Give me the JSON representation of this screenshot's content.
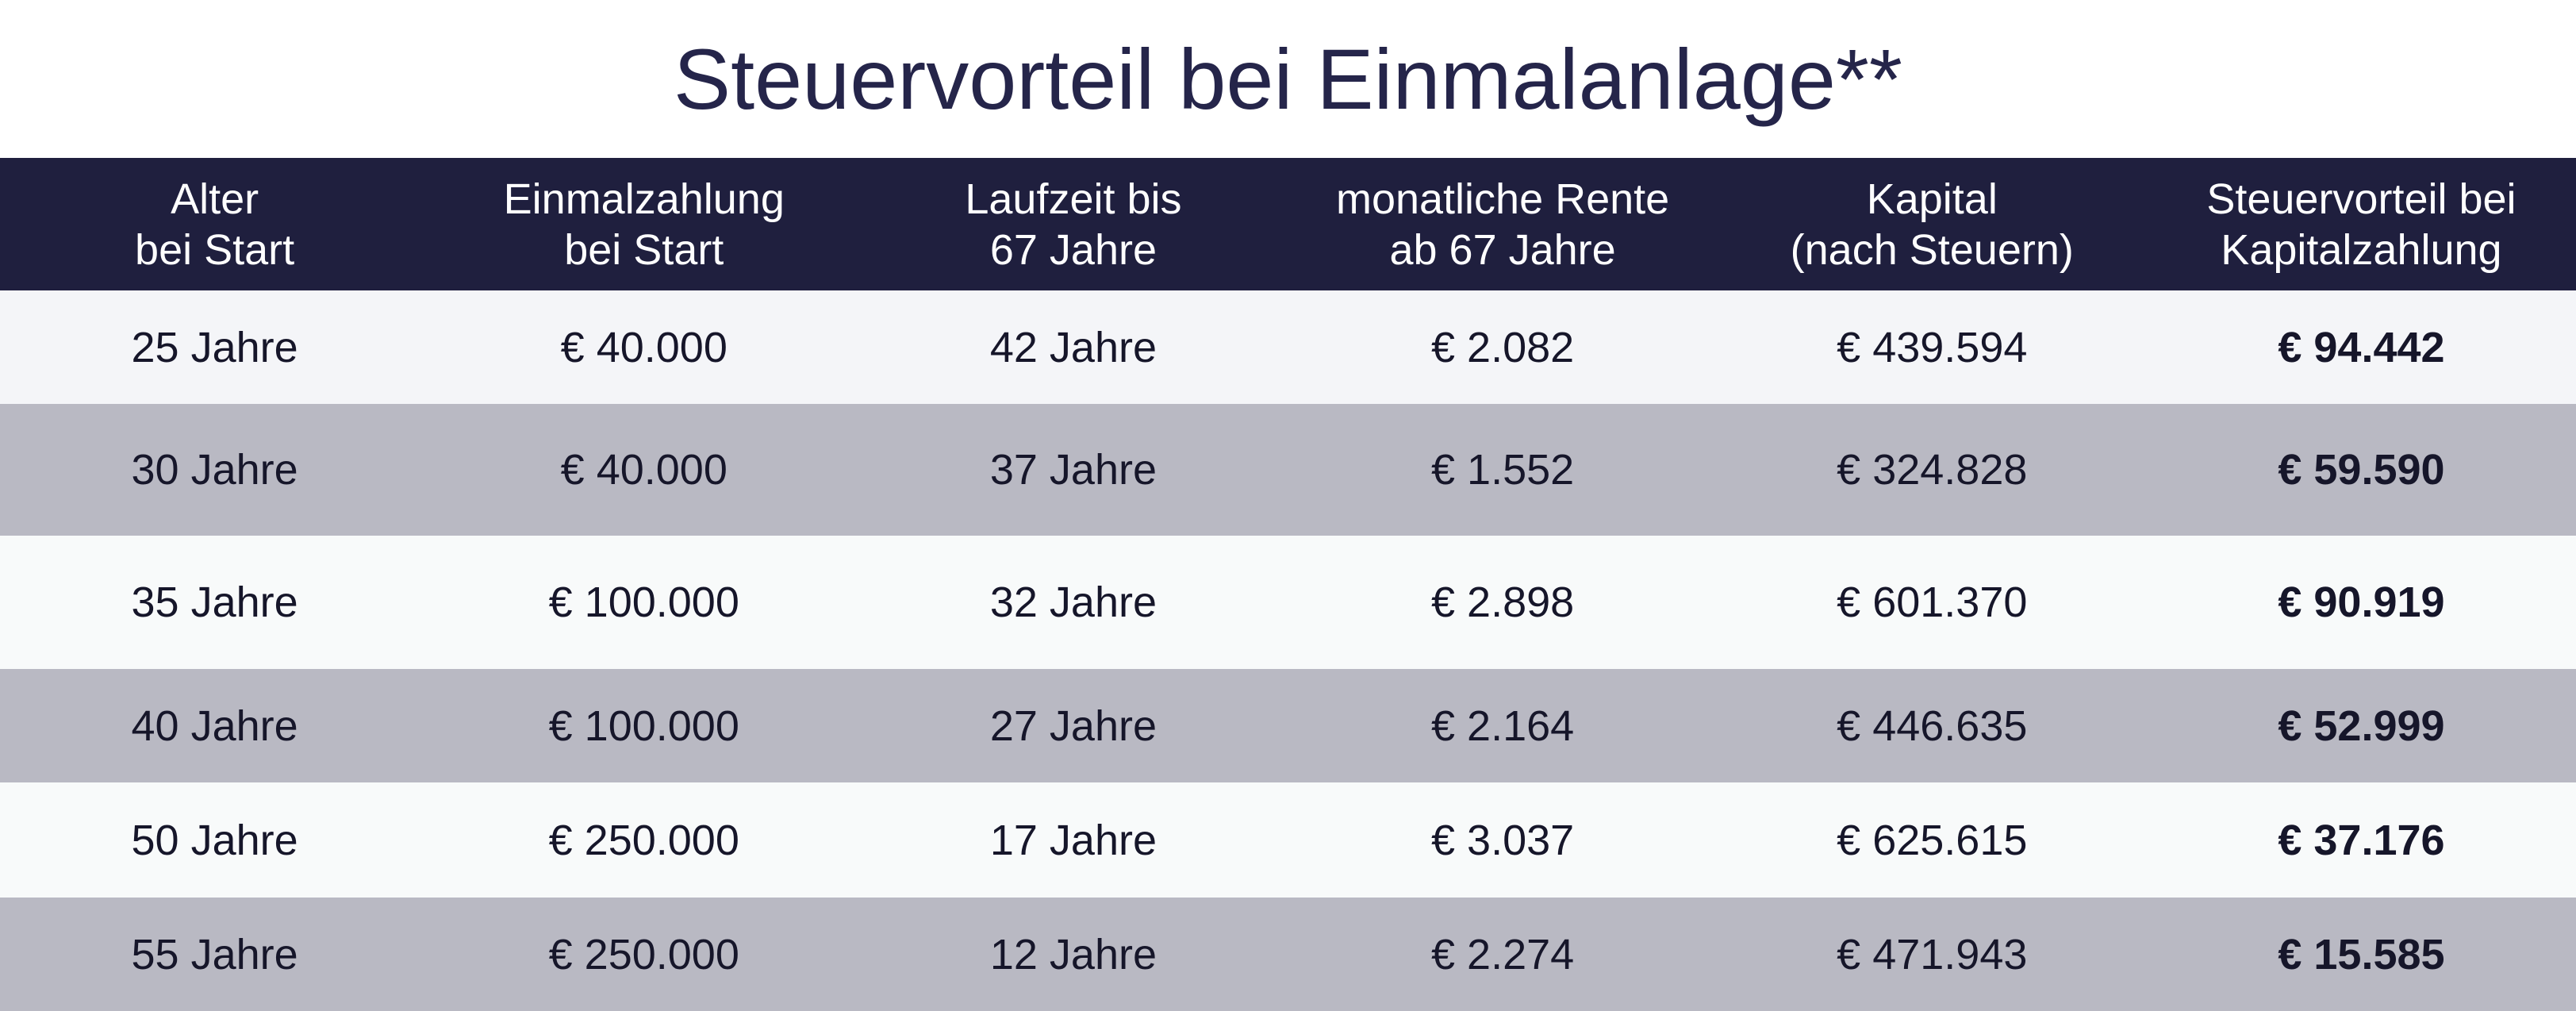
{
  "title": "Steuervorteil bei Einmalanlage**",
  "table": {
    "header": [
      [
        "Alter",
        "bei Start"
      ],
      [
        "Einmalzahlung",
        "bei Start"
      ],
      [
        "Laufzeit bis",
        "67 Jahre"
      ],
      [
        "monatliche Rente",
        "ab 67 Jahre"
      ],
      [
        "Kapital",
        "(nach Steuern)"
      ],
      [
        "Steuervorteil bei",
        "Kapitalzahlung"
      ]
    ],
    "rows": [
      [
        "25 Jahre",
        "€ 40.000",
        "42 Jahre",
        "€ 2.082",
        "€ 439.594",
        "€ 94.442"
      ],
      [
        "30 Jahre",
        "€ 40.000",
        "37 Jahre",
        "€ 1.552",
        "€ 324.828",
        "€ 59.590"
      ],
      [
        "35 Jahre",
        "€ 100.000",
        "32 Jahre",
        "€ 2.898",
        "€ 601.370",
        "€ 90.919"
      ],
      [
        "40 Jahre",
        "€ 100.000",
        "27 Jahre",
        "€ 2.164",
        "€ 446.635",
        "€ 52.999"
      ],
      [
        "50 Jahre",
        "€ 250.000",
        "17 Jahre",
        "€ 3.037",
        "€ 625.615",
        "€ 37.176"
      ],
      [
        "55 Jahre",
        "€ 250.000",
        "12 Jahre",
        "€ 2.274",
        "€ 471.943",
        "€ 15.585"
      ]
    ]
  }
}
